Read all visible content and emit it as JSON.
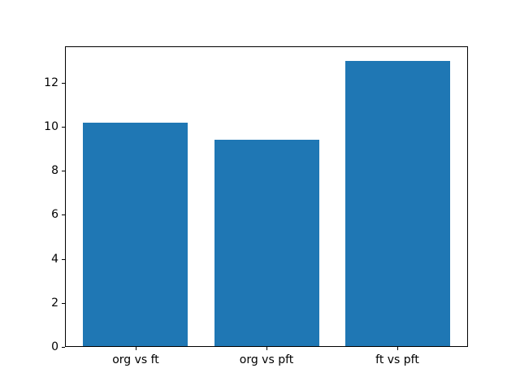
{
  "figure": {
    "background_color": "#ffffff",
    "spine_color": "#000000",
    "tick_label_color": "#000000"
  },
  "chart_data": {
    "type": "bar",
    "categories": [
      "org vs ft",
      "org vs pft",
      "ft vs pft"
    ],
    "values": [
      10.2,
      9.4,
      13.0
    ],
    "title": "",
    "xlabel": "",
    "ylabel": "",
    "ylim": [
      0,
      13.65
    ],
    "yticks": [
      0,
      2,
      4,
      6,
      8,
      10,
      12
    ],
    "xlim": [
      -0.54,
      2.54
    ],
    "bar_width": 0.8,
    "bar_color": "#1f77b4",
    "grid": false,
    "legend_position": "none"
  }
}
